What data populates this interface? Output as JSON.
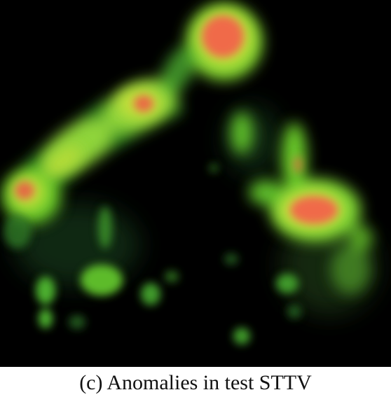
{
  "figure": {
    "caption": "(c) Anomalies in test STTV",
    "background_color": "#000000",
    "colors": {
      "low": "#1f7a2a",
      "mid": "#6fd12a",
      "high": "#c8e03a",
      "peak": "#f06a4a"
    }
  }
}
